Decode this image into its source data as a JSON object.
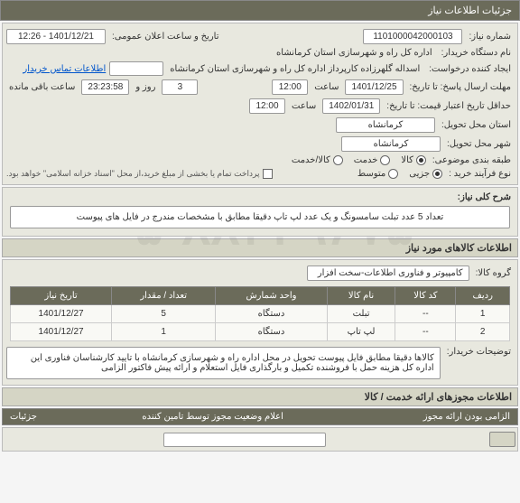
{
  "header": {
    "title": "جزئیات اطلاعات نیاز"
  },
  "fields": {
    "need_no_label": "شماره نیاز:",
    "need_no": "1101000042000103",
    "announce_label": "تاریخ و ساعت اعلان عمومی:",
    "announce": "1401/12/21 - 12:26",
    "buyer_label": "نام دستگاه خریدار:",
    "buyer": "اداره کل راه و شهرسازی استان کرمانشاه",
    "creator_label": "ایجاد کننده درخواست:",
    "creator": "اسداله گلهرزاده کارپرداز اداره کل راه و شهرسازی استان کرمانشاه",
    "contact_link": "اطلاعات تماس خریدار",
    "deadline_label": "مهلت ارسال پاسخ: تا تاریخ:",
    "deadline_date": "1401/12/25",
    "time_label": "ساعت",
    "deadline_time": "12:00",
    "days": "3",
    "days_label": "روز و",
    "remaining": "23:23:58",
    "remaining_label": "ساعت باقی مانده",
    "min_valid_label": "حداقل تاریخ اعتبار قیمت: تا تاریخ:",
    "valid_date": "1402/01/31",
    "valid_time": "12:00",
    "loc_label": "استان محل تحویل:",
    "loc": "کرمانشاه",
    "city_label": "شهر محل تحویل:",
    "city": "کرمانشاه",
    "cat_label": "طبقه بندی موضوعی:",
    "buy_type_label": "نوع فرآیند خرید :",
    "pay_note": "پرداخت تمام یا بخشی از مبلغ خرید،از محل \"اسناد خزانه اسلامی\" خواهد بود."
  },
  "radios": {
    "cat": [
      {
        "label": "کالا",
        "selected": true
      },
      {
        "label": "خدمت",
        "selected": false
      },
      {
        "label": "کالا/خدمت",
        "selected": false
      }
    ],
    "buy": [
      {
        "label": "جزیی",
        "selected": true
      },
      {
        "label": "متوسط",
        "selected": false
      }
    ]
  },
  "desc": {
    "label": "شرح کلی نیاز:",
    "text": "تعداد 5 عدد تبلت سامسونگ و یک عدد لپ تاپ دقیقا مطابق با مشخصات مندرج در فایل های پیوست"
  },
  "items_section": "اطلاعات کالاهای مورد نیاز",
  "group_label": "گروه کالا:",
  "group_value": "کامپیوتر و فناوری اطلاعات-سخت افزار",
  "table": {
    "headers": [
      "ردیف",
      "کد کالا",
      "نام کالا",
      "واحد شمارش",
      "تعداد / مقدار",
      "تاریخ نیاز"
    ],
    "rows": [
      [
        "1",
        "--",
        "تبلت",
        "دستگاه",
        "5",
        "1401/12/27"
      ],
      [
        "2",
        "--",
        "لپ تاپ",
        "دستگاه",
        "1",
        "1401/12/27"
      ]
    ]
  },
  "buyer_notes_label": "توضیحات خریدار:",
  "buyer_notes": "کالاها دقیقا مطابق فایل پیوست تحویل در محل اداره راه و شهرسازی کرمانشاه با تایید کارشناسان فناوری این اداره کل هزینه حمل با فروشنده تکمیل و بارگذاری فایل استعلام و ارائه پیش فاکتور الزامی",
  "perm_section": "اطلاعات مجوزهای ارائه خدمت / کالا",
  "bottom": {
    "col1": "الزامی بودن ارائه مجوز",
    "col2": "اعلام وضعیت مجوز توسط تامین کننده",
    "col3": "جزئیات"
  },
  "watermark": "۰۵-۸۸۳۴۹۶۷۵",
  "colors": {
    "header_bg": "#6b6b5a",
    "section_bg": "#e8e8df",
    "border": "#999"
  }
}
